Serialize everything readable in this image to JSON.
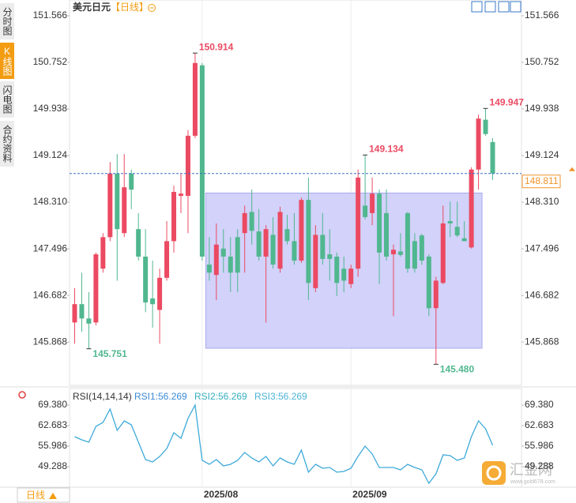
{
  "tabs": [
    "分时图",
    "K线图",
    "闪电图",
    "合约资料"
  ],
  "period_button": "日线",
  "watermark": {
    "name": "汇金网",
    "url": "www.gold678.com"
  },
  "chart_data": [
    {
      "type": "candlestick",
      "title": "美元日元",
      "subtitle": "【日线】",
      "categories": [
        null,
        null,
        null,
        null,
        null,
        null,
        null,
        null,
        null,
        null,
        null,
        null,
        null,
        null,
        null,
        null,
        null,
        null,
        "2025/08",
        null,
        null,
        null,
        null,
        null,
        null,
        null,
        null,
        null,
        null,
        null,
        null,
        null,
        null,
        null,
        null,
        null,
        null,
        null,
        null,
        "2025/09",
        null,
        null,
        null,
        null,
        null,
        null,
        null,
        null,
        null,
        null,
        null,
        null,
        null,
        null,
        null,
        null,
        null,
        null,
        null,
        null
      ],
      "open": [
        146.21,
        146.53,
        146.28,
        146.21,
        147.15,
        147.7,
        148.81,
        147.77,
        148.81,
        147.84,
        147.36,
        146.63,
        146.43,
        146.99,
        147.63,
        148.42,
        148.42,
        149.47,
        150.7,
        147.22,
        147.04,
        147.5,
        147.36,
        147.7,
        147.77,
        148.14,
        147.8,
        147.36,
        147.74,
        147.15,
        147.84,
        147.63,
        147.29,
        148.35,
        146.81,
        147.74,
        147.4,
        147.36,
        147.15,
        146.88,
        147.15,
        148.25,
        148.12,
        148.46,
        148.12,
        147.4,
        147.45,
        148.12,
        147.63,
        147.73,
        147.36,
        146.46,
        146.9,
        147.98,
        147.88,
        147.68,
        147.52,
        148.88,
        149.75,
        149.36
      ],
      "high": [
        146.81,
        147.08,
        146.74,
        147.43,
        147.77,
        149.01,
        149.15,
        149.15,
        148.88,
        148.12,
        147.84,
        147.29,
        147.15,
        147.98,
        148.6,
        148.81,
        149.57,
        150.914,
        150.74,
        147.7,
        147.94,
        147.84,
        147.7,
        147.84,
        148.25,
        148.53,
        148.19,
        147.91,
        148.05,
        148.23,
        148.09,
        148.12,
        148.39,
        148.74,
        147.91,
        148.12,
        147.84,
        147.43,
        147.36,
        147.22,
        148.88,
        149.134,
        148.74,
        148.53,
        148.53,
        147.57,
        147.77,
        148.14,
        147.77,
        147.76,
        147.4,
        147.01,
        148.25,
        148.32,
        148.32,
        147.98,
        148.92,
        149.84,
        149.947,
        149.43
      ],
      "low": [
        145.84,
        146.05,
        145.751,
        146.16,
        147.08,
        147.63,
        146.94,
        147.7,
        148.19,
        147.29,
        146.39,
        146.12,
        145.84,
        146.94,
        147.43,
        148.12,
        147.77,
        149.43,
        147.29,
        146.94,
        146.6,
        147.08,
        146.74,
        146.74,
        147.08,
        147.57,
        147.29,
        146.21,
        147.15,
        147.08,
        147.57,
        147.22,
        147.25,
        146.6,
        146.74,
        147.22,
        146.94,
        146.67,
        146.74,
        146.81,
        147.01,
        148.01,
        147.91,
        146.88,
        147.29,
        146.32,
        147.36,
        147.08,
        147.08,
        147.22,
        146.32,
        145.48,
        146.88,
        147.7,
        147.7,
        147.63,
        147.5,
        148.53,
        149.47,
        148.7
      ],
      "close": [
        146.53,
        146.28,
        146.19,
        147.4,
        147.7,
        148.81,
        147.84,
        148.57,
        148.53,
        147.36,
        146.56,
        146.53,
        146.99,
        147.63,
        148.49,
        148.46,
        149.47,
        150.74,
        147.36,
        147.08,
        147.57,
        147.36,
        147.08,
        147.08,
        148.12,
        147.81,
        147.36,
        147.84,
        147.22,
        148.14,
        147.63,
        147.29,
        148.35,
        146.9,
        147.74,
        147.32,
        147.32,
        146.9,
        146.94,
        147.15,
        148.74,
        148.05,
        148.46,
        147.43,
        147.36,
        147.48,
        147.39,
        147.15,
        147.15,
        147.29,
        146.46,
        146.94,
        147.94,
        147.94,
        147.73,
        147.63,
        148.88,
        149.77,
        149.5,
        148.811
      ],
      "up_color": "#eb4a62",
      "down_color": "#50b78f",
      "current_price_color": "#3d6fc4",
      "current_label_color": "#f0932b",
      "ylim": [
        145.14,
        151.73
      ],
      "yticks": [
        151.566,
        150.752,
        149.938,
        149.124,
        {
          "value": 148.31,
          "label": "148.310"
        },
        147.496,
        146.682,
        145.868
      ],
      "annotations": [
        {
          "label": "150.914",
          "x": 17,
          "y": 150.914
        },
        {
          "label": "149.134",
          "x": 41,
          "y": 149.134
        },
        {
          "label": "149.947",
          "x": 58,
          "y": 149.947
        },
        {
          "label": "145.751",
          "x": 2,
          "y": 145.751
        },
        {
          "label": "145.480",
          "x": 51,
          "y": 145.48
        }
      ],
      "box": {
        "x": [
          19,
          57
        ],
        "y": [
          145.76,
          148.47
        ],
        "color": "#d2d2fa",
        "border": "#a9a9ef"
      }
    },
    {
      "type": "line",
      "title": "RSI(14,14,14)",
      "legend": [
        {
          "label": "RSI1:56.269",
          "color": "#3a8ad6"
        },
        {
          "label": "RSI2:56.269",
          "color": "#36aebf"
        },
        {
          "label": "RSI3:56.269",
          "color": "#4cb3d6"
        }
      ],
      "series": [
        {
          "name": "RSI1",
          "color": "#3eaad9",
          "values": [
            59.08,
            58.05,
            57.27,
            62.42,
            63.71,
            68.09,
            61.14,
            64.23,
            62.94,
            57.27,
            51.61,
            50.83,
            52.64,
            55.21,
            60.36,
            58.56,
            65.0,
            69.38,
            51.35,
            50.06,
            51.61,
            49.54,
            50.06,
            51.35,
            53.92,
            52.12,
            50.83,
            52.64,
            49.54,
            52.12,
            50.83,
            50.06,
            54.7,
            47.48,
            50.06,
            48.77,
            49.03,
            47.48,
            47.74,
            48.77,
            52.64,
            55.98,
            53.41,
            49.03,
            49.03,
            49.03,
            48.26,
            50.06,
            49.03,
            48.26,
            43.88,
            46.97,
            53.15,
            52.89,
            51.35,
            52.12,
            59.08,
            64.23,
            61.65,
            56.269
          ]
        }
      ],
      "ylim": [
        42.59,
        73.5
      ],
      "yticks": [
        {
          "value": 69.38,
          "label": "69.380"
        },
        62.683,
        55.986,
        49.288
      ]
    }
  ]
}
